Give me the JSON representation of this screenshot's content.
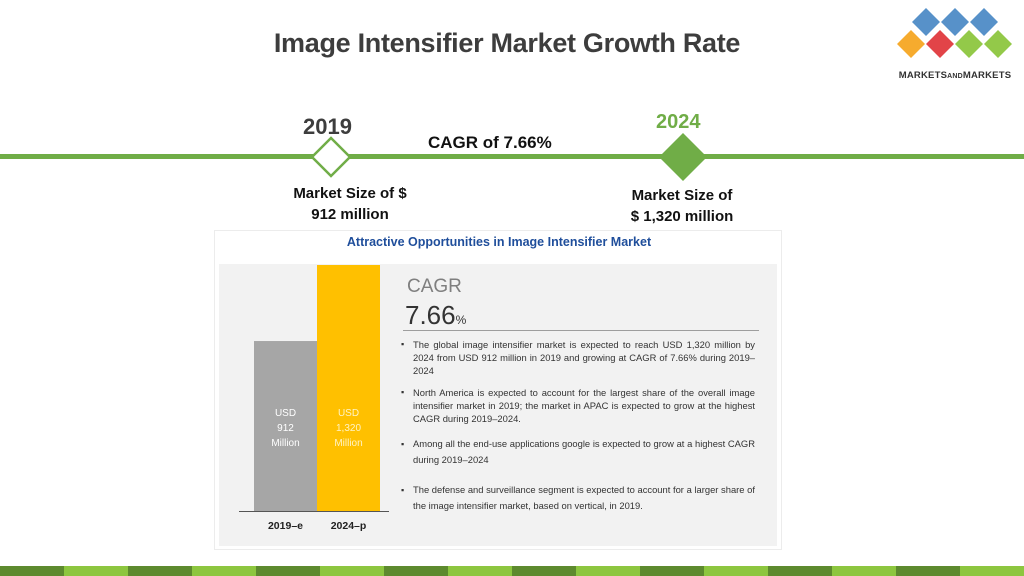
{
  "title": "Image Intensifier Market Growth Rate",
  "logo": {
    "text_main": "MARKETS",
    "text_and": "AND",
    "text_end": "MARKETS",
    "colors": [
      "#3a7ebf",
      "#8dc63f",
      "#e03a3e",
      "#f5a623",
      "#1f4e79",
      "#70ad47"
    ]
  },
  "timeline": {
    "start_year": "2019",
    "end_year": "2024",
    "cagr_text": "CAGR of 7.66%",
    "start_market_size": [
      "Market Size of $",
      "912 million"
    ],
    "end_market_size": [
      "Market Size of",
      "$ 1,320 million"
    ],
    "line_color": "#70ad47"
  },
  "infographic": {
    "title": "Attractive Opportunities in Image Intensifier Market",
    "cagr_label": "CAGR",
    "cagr_value": "7.66",
    "cagr_unit": "%",
    "bullets": [
      "The global image intensifier market is expected to reach USD 1,320 million by 2024 from USD 912 million in 2019 and growing at CAGR of 7.66% during 2019–2024",
      "North America is expected to account for the largest share of the overall image intensifier market in 2019; the market in APAC is expected to grow at the highest CAGR during 2019–2024.",
      "Among all the end-use applications google is expected to grow at a highest CAGR during 2019–2024",
      "The defense and surveillance segment is expected to account for a larger share of the image intensifier market, based on vertical, in 2019."
    ]
  },
  "chart_data": {
    "type": "bar",
    "categories": [
      "2019–e",
      "2024–p"
    ],
    "values": [
      912,
      1320
    ],
    "bar_labels": [
      [
        "USD",
        "912",
        "Million"
      ],
      [
        "USD",
        "1,320",
        "Million"
      ]
    ],
    "units": "USD Million",
    "colors": [
      "#a6a6a6",
      "#ffc000"
    ],
    "label_colors": [
      "#ffffff",
      "#fff3c4"
    ]
  },
  "footer_stripe_colors": [
    "#5d8a2e",
    "#8dc63f",
    "#5d8a2e",
    "#8dc63f",
    "#5d8a2e",
    "#8dc63f",
    "#5d8a2e",
    "#8dc63f",
    "#5d8a2e",
    "#8dc63f",
    "#5d8a2e",
    "#8dc63f",
    "#5d8a2e",
    "#8dc63f",
    "#5d8a2e",
    "#8dc63f"
  ]
}
